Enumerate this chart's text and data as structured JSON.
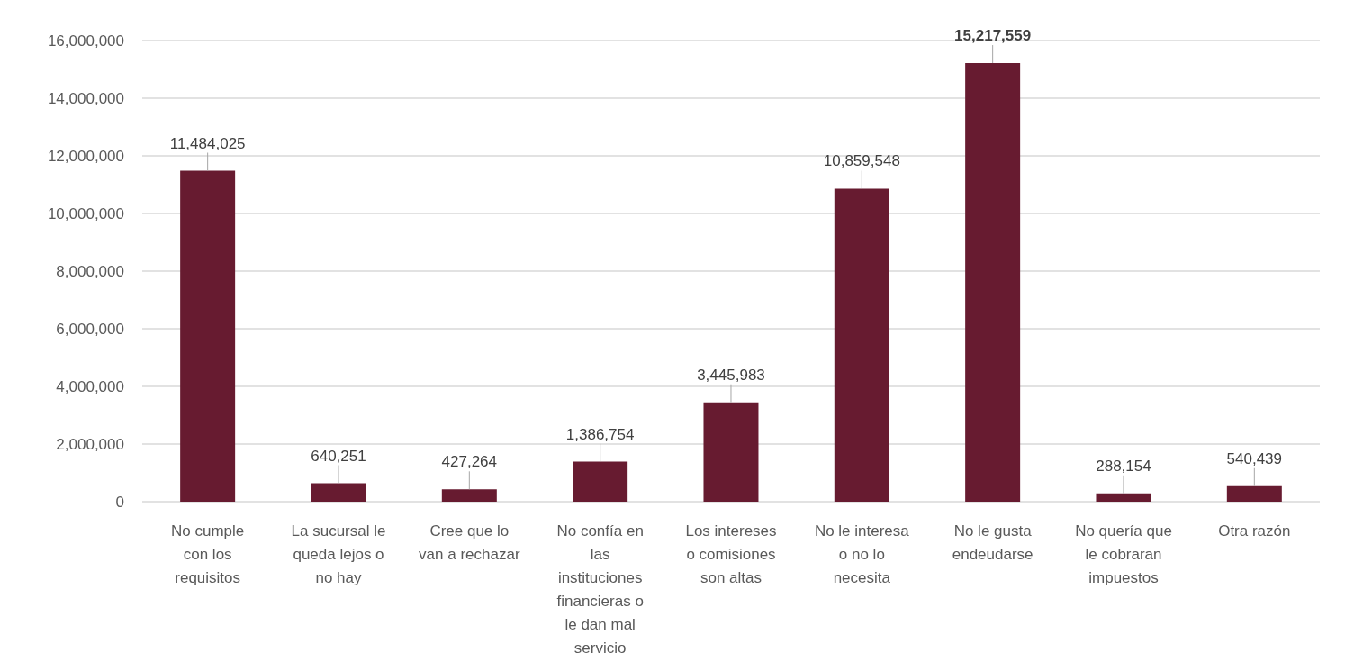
{
  "chart_data": {
    "type": "bar",
    "categories": [
      "No cumple con los requisitos",
      "La sucursal le queda lejos o no hay",
      "Cree que lo van a rechazar",
      "No confía en las instituciones financieras o le dan mal servicio",
      "Los intereses o comisiones son altas",
      "No le interesa o no lo necesita",
      "No le gusta endeudarse",
      "No quería que le cobraran impuestos",
      "Otra razón"
    ],
    "values": [
      11484025,
      640251,
      427264,
      1386754,
      3445983,
      10859548,
      15217559,
      288154,
      540439
    ],
    "value_labels": [
      "11,484,025",
      "640,251",
      "427,264",
      "1,386,754",
      "3,445,983",
      "10,859,548",
      "15,217,559",
      "288,154",
      "540,439"
    ],
    "color": "#671b30",
    "ylim": [
      0,
      16000000
    ],
    "yticks": [
      {
        "value": 0,
        "label": "0"
      },
      {
        "value": 2000000,
        "label": "2,000,000"
      },
      {
        "value": 4000000,
        "label": "4,000,000"
      },
      {
        "value": 6000000,
        "label": "6,000,000"
      },
      {
        "value": 8000000,
        "label": "8,000,000"
      },
      {
        "value": 10000000,
        "label": "10,000,000"
      },
      {
        "value": 12000000,
        "label": "12,000,000"
      },
      {
        "value": 14000000,
        "label": "14,000,000"
      },
      {
        "value": 16000000,
        "label": "16,000,000"
      }
    ],
    "grid": "y"
  }
}
